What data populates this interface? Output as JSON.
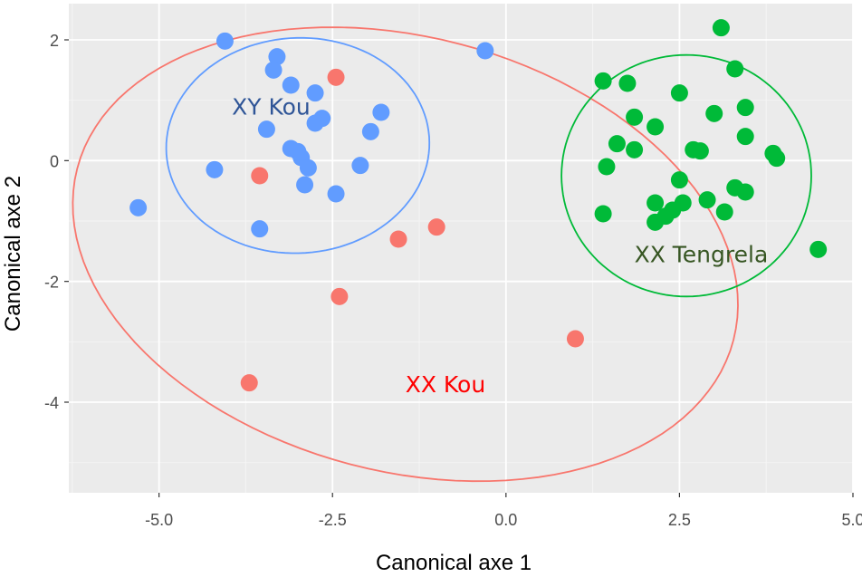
{
  "chart_data": {
    "type": "scatter",
    "title": "",
    "xlabel": "Canonical axe 1",
    "ylabel": "Canonical axe 2",
    "xlim": [
      -6.3,
      5.0
    ],
    "ylim": [
      -5.5,
      2.6
    ],
    "xticks": [
      -5.0,
      -2.5,
      0.0,
      2.5,
      5.0
    ],
    "xtick_labels": [
      "-5.0",
      "-2.5",
      "0.0",
      "2.5",
      "5.0"
    ],
    "yticks": [
      -4,
      -2,
      0,
      2
    ],
    "ytick_labels": [
      "-4",
      "-2",
      "0",
      "2"
    ],
    "grid": true,
    "background": "#ebebeb",
    "series": [
      {
        "name": "XX Kou",
        "color": "#f8766d",
        "label_color": "#ff0000",
        "ellipse": {
          "cx": -1.45,
          "cy": -1.55,
          "rx": 4.95,
          "ry": 3.55,
          "angle_deg": -21
        },
        "label_pos": {
          "x": -1.45,
          "y": -3.7
        },
        "points": [
          {
            "x": -2.45,
            "y": 1.38
          },
          {
            "x": -3.55,
            "y": -0.25
          },
          {
            "x": -1.55,
            "y": -1.3
          },
          {
            "x": -1.0,
            "y": -1.1
          },
          {
            "x": -2.4,
            "y": -2.25
          },
          {
            "x": 1.0,
            "y": -2.95
          },
          {
            "x": -3.7,
            "y": -3.68
          }
        ]
      },
      {
        "name": "XY Kou",
        "color": "#619cff",
        "label_color": "#2f5597",
        "ellipse": {
          "cx": -3.0,
          "cy": 0.25,
          "rx": 1.9,
          "ry": 1.78,
          "angle_deg": 10
        },
        "label_pos": {
          "x": -3.95,
          "y": 0.9
        },
        "points": [
          {
            "x": -4.05,
            "y": 1.98
          },
          {
            "x": -0.3,
            "y": 1.82
          },
          {
            "x": -3.3,
            "y": 1.72
          },
          {
            "x": -3.35,
            "y": 1.5
          },
          {
            "x": -3.1,
            "y": 1.25
          },
          {
            "x": -2.75,
            "y": 1.12
          },
          {
            "x": -1.8,
            "y": 0.8
          },
          {
            "x": -2.65,
            "y": 0.7
          },
          {
            "x": -2.75,
            "y": 0.62
          },
          {
            "x": -3.45,
            "y": 0.52
          },
          {
            "x": -1.95,
            "y": 0.48
          },
          {
            "x": -3.1,
            "y": 0.2
          },
          {
            "x": -3.0,
            "y": 0.15
          },
          {
            "x": -2.95,
            "y": 0.05
          },
          {
            "x": -2.85,
            "y": -0.12
          },
          {
            "x": -2.1,
            "y": -0.08
          },
          {
            "x": -4.2,
            "y": -0.15
          },
          {
            "x": -2.9,
            "y": -0.4
          },
          {
            "x": -2.45,
            "y": -0.55
          },
          {
            "x": -5.3,
            "y": -0.78
          },
          {
            "x": -3.55,
            "y": -1.13
          }
        ]
      },
      {
        "name": "XX Tengrela",
        "color": "#00ba38",
        "label_color": "#375623",
        "ellipse": {
          "cx": 2.6,
          "cy": -0.25,
          "rx": 1.8,
          "ry": 2.0,
          "angle_deg": 0
        },
        "label_pos": {
          "x": 1.85,
          "y": -1.55
        },
        "points": [
          {
            "x": 3.1,
            "y": 2.2
          },
          {
            "x": 3.3,
            "y": 1.52
          },
          {
            "x": 1.4,
            "y": 1.32
          },
          {
            "x": 1.75,
            "y": 1.28
          },
          {
            "x": 2.5,
            "y": 1.12
          },
          {
            "x": 3.45,
            "y": 0.88
          },
          {
            "x": 3.0,
            "y": 0.78
          },
          {
            "x": 1.85,
            "y": 0.72
          },
          {
            "x": 2.15,
            "y": 0.56
          },
          {
            "x": 3.45,
            "y": 0.4
          },
          {
            "x": 1.6,
            "y": 0.28
          },
          {
            "x": 1.85,
            "y": 0.18
          },
          {
            "x": 2.7,
            "y": 0.18
          },
          {
            "x": 2.8,
            "y": 0.16
          },
          {
            "x": 3.85,
            "y": 0.12
          },
          {
            "x": 3.9,
            "y": 0.04
          },
          {
            "x": 1.45,
            "y": -0.1
          },
          {
            "x": 2.5,
            "y": -0.32
          },
          {
            "x": 3.3,
            "y": -0.45
          },
          {
            "x": 3.45,
            "y": -0.52
          },
          {
            "x": 2.15,
            "y": -0.7
          },
          {
            "x": 2.55,
            "y": -0.7
          },
          {
            "x": 2.9,
            "y": -0.65
          },
          {
            "x": 2.4,
            "y": -0.82
          },
          {
            "x": 1.4,
            "y": -0.88
          },
          {
            "x": 3.15,
            "y": -0.85
          },
          {
            "x": 2.3,
            "y": -0.92
          },
          {
            "x": 2.15,
            "y": -1.02
          },
          {
            "x": 4.5,
            "y": -1.47
          }
        ]
      }
    ]
  }
}
